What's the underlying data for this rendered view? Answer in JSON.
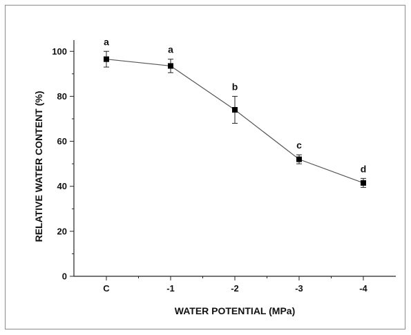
{
  "chart_data": {
    "type": "line",
    "title": "",
    "xlabel": "WATER POTENTIAL (MPa)",
    "ylabel": "RELATIVE WATER CONTENT (%)",
    "categories": [
      "C",
      "-1",
      "-2",
      "-3",
      "-4"
    ],
    "ylim": [
      0,
      105
    ],
    "yticks": [
      0,
      20,
      40,
      60,
      80,
      100
    ],
    "grid": false,
    "series": [
      {
        "values": [
          96.5,
          93.5,
          74,
          52,
          41.5
        ],
        "errors": [
          3.5,
          3,
          6,
          2,
          2
        ],
        "significance_labels": [
          "a",
          "a",
          "b",
          "c",
          "d"
        ],
        "color": "#000000",
        "marker": "square"
      }
    ]
  }
}
